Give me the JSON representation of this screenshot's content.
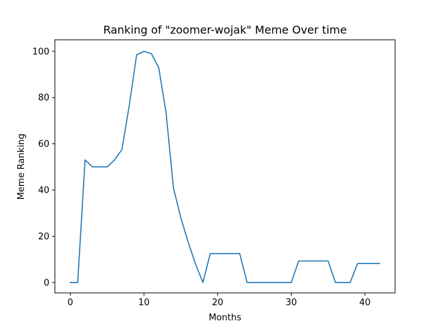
{
  "chart_data": {
    "type": "line",
    "title": "Ranking of \"zoomer-wojak\" Meme Over time",
    "xlabel": "Months",
    "ylabel": "Meme Ranking",
    "xlim": [
      -2.1,
      44.1
    ],
    "ylim": [
      -4.5,
      105
    ],
    "x_ticks": [
      0,
      10,
      20,
      30,
      40
    ],
    "y_ticks": [
      0,
      20,
      40,
      60,
      80,
      100
    ],
    "grid": false,
    "line_color": "#1f77b4",
    "series": [
      {
        "x": [
          0,
          1,
          2,
          3,
          4,
          5,
          6,
          7,
          8,
          9,
          10,
          11,
          12,
          13,
          14,
          15,
          16,
          17,
          18,
          19,
          20,
          21,
          22,
          23,
          24,
          25,
          26,
          27,
          28,
          29,
          30,
          31,
          32,
          33,
          34,
          35,
          36,
          37,
          38,
          39,
          40,
          41,
          42
        ],
        "values": [
          0,
          0,
          53,
          50,
          50,
          50,
          53,
          57.5,
          76.5,
          98.5,
          100,
          99,
          93,
          73.5,
          41,
          28,
          17.5,
          8,
          0,
          12.5,
          12.5,
          12.5,
          12.5,
          12.5,
          0,
          0,
          0,
          0,
          0,
          0,
          0,
          9.3,
          9.3,
          9.3,
          9.3,
          9.3,
          0,
          0,
          0,
          8.2,
          8.2,
          8.2,
          8.2
        ]
      }
    ]
  }
}
